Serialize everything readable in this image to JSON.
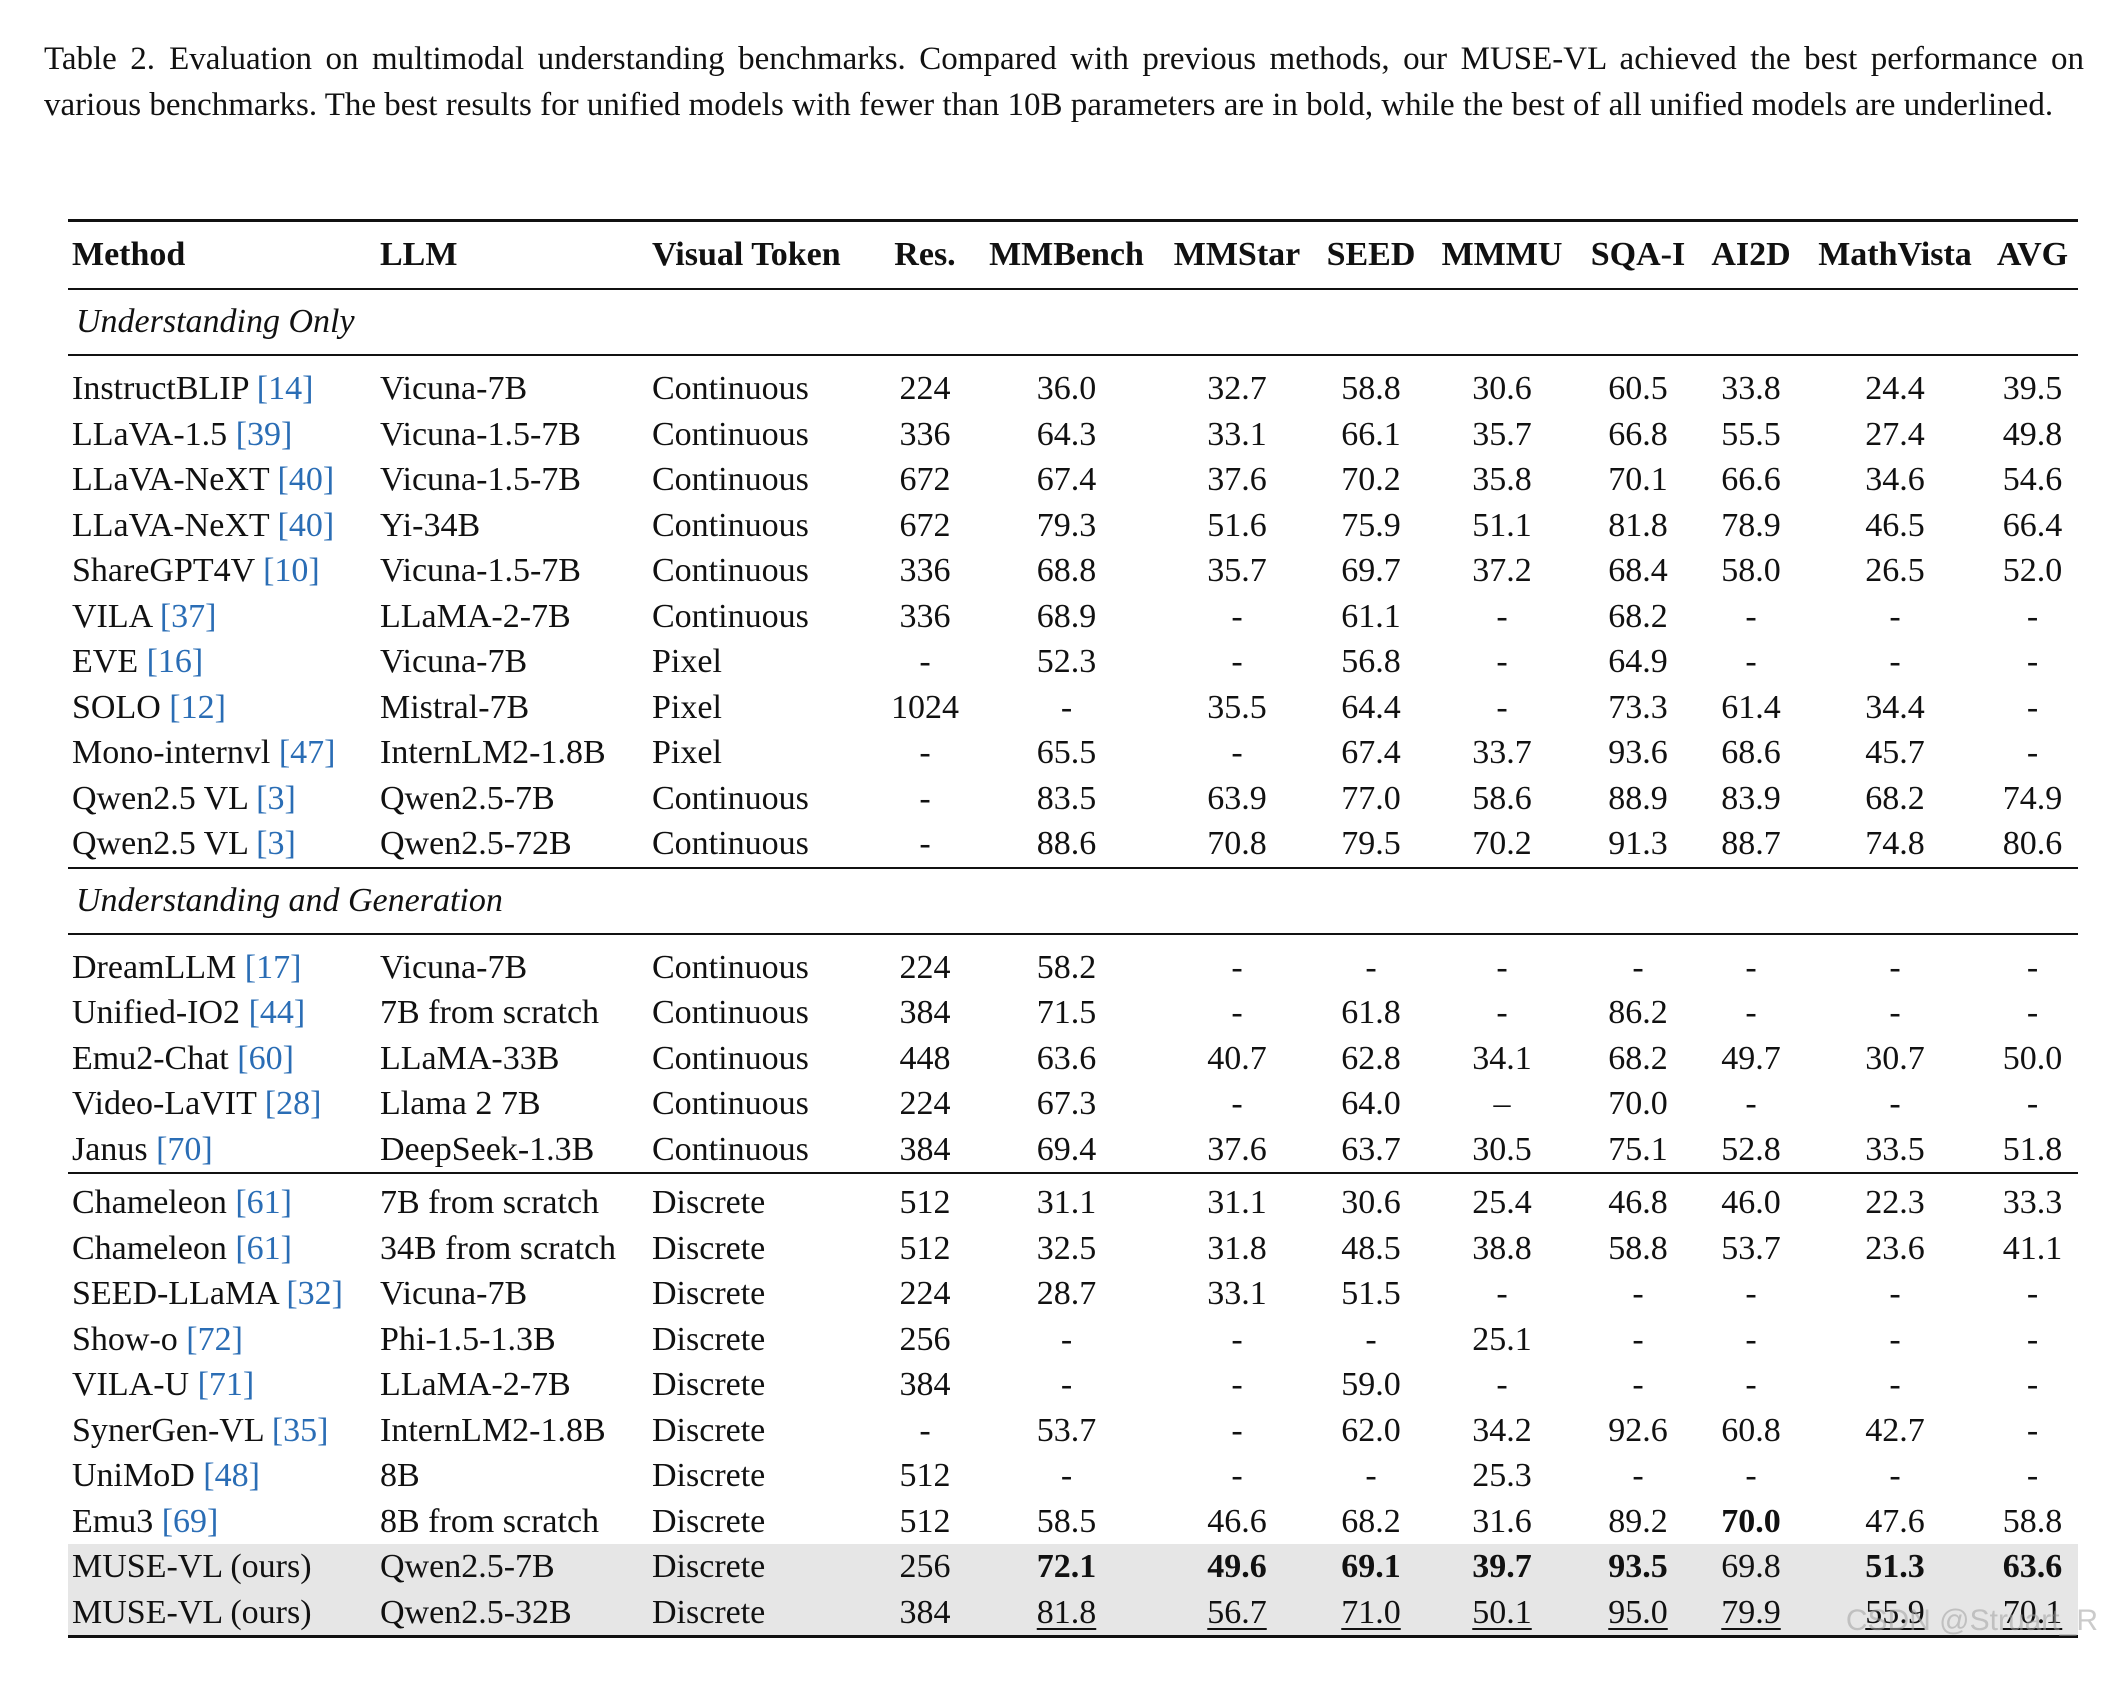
{
  "caption": {
    "label": "Table 2.",
    "text": "Evaluation on multimodal understanding benchmarks.  Compared with previous methods, our MUSE-VL achieved the best performance on various benchmarks. The best results for unified models with fewer than 10B parameters are in bold, while the best of all unified models are underlined."
  },
  "headers": [
    "Method",
    "LLM",
    "Visual Token",
    "Res.",
    "MMBench",
    "MMStar",
    "SEED",
    "MMMU",
    "SQA-I",
    "AI2D",
    "MathVista",
    "AVG"
  ],
  "sections": {
    "understanding_only": "Understanding Only",
    "understanding_generation": "Understanding and Generation"
  },
  "understanding_only_rows": [
    {
      "method": "InstructBLIP",
      "ref": "[14]",
      "llm": "Vicuna-7B",
      "token": "Continuous",
      "res": "224",
      "mmbench": "36.0",
      "mmstar": "32.7",
      "seed": "58.8",
      "mmmu": "30.6",
      "sqa": "60.5",
      "ai2d": "33.8",
      "math": "24.4",
      "avg": "39.5"
    },
    {
      "method": "LLaVA-1.5",
      "ref": "[39]",
      "llm": "Vicuna-1.5-7B",
      "token": "Continuous",
      "res": "336",
      "mmbench": "64.3",
      "mmstar": "33.1",
      "seed": "66.1",
      "mmmu": "35.7",
      "sqa": "66.8",
      "ai2d": "55.5",
      "math": "27.4",
      "avg": "49.8"
    },
    {
      "method": "LLaVA-NeXT",
      "ref": "[40]",
      "llm": "Vicuna-1.5-7B",
      "token": "Continuous",
      "res": "672",
      "mmbench": "67.4",
      "mmstar": "37.6",
      "seed": "70.2",
      "mmmu": "35.8",
      "sqa": "70.1",
      "ai2d": "66.6",
      "math": "34.6",
      "avg": "54.6"
    },
    {
      "method": "LLaVA-NeXT",
      "ref": "[40]",
      "llm": "Yi-34B",
      "token": "Continuous",
      "res": "672",
      "mmbench": "79.3",
      "mmstar": "51.6",
      "seed": "75.9",
      "mmmu": "51.1",
      "sqa": "81.8",
      "ai2d": "78.9",
      "math": "46.5",
      "avg": "66.4"
    },
    {
      "method": "ShareGPT4V",
      "ref": "[10]",
      "llm": "Vicuna-1.5-7B",
      "token": "Continuous",
      "res": "336",
      "mmbench": "68.8",
      "mmstar": "35.7",
      "seed": "69.7",
      "mmmu": "37.2",
      "sqa": "68.4",
      "ai2d": "58.0",
      "math": "26.5",
      "avg": "52.0"
    },
    {
      "method": "VILA",
      "ref": "[37]",
      "llm": "LLaMA-2-7B",
      "token": "Continuous",
      "res": "336",
      "mmbench": "68.9",
      "mmstar": "-",
      "seed": "61.1",
      "mmmu": "-",
      "sqa": "68.2",
      "ai2d": "-",
      "math": "-",
      "avg": "-"
    },
    {
      "method": "EVE",
      "ref": "[16]",
      "llm": "Vicuna-7B",
      "token": "Pixel",
      "res": "-",
      "mmbench": "52.3",
      "mmstar": "-",
      "seed": "56.8",
      "mmmu": "-",
      "sqa": "64.9",
      "ai2d": "-",
      "math": "-",
      "avg": "-"
    },
    {
      "method": "SOLO",
      "ref": "[12]",
      "llm": "Mistral-7B",
      "token": "Pixel",
      "res": "1024",
      "mmbench": "-",
      "mmstar": "35.5",
      "seed": "64.4",
      "mmmu": "-",
      "sqa": "73.3",
      "ai2d": "61.4",
      "math": "34.4",
      "avg": "-"
    },
    {
      "method": "Mono-internvl",
      "ref": "[47]",
      "llm": "InternLM2-1.8B",
      "token": "Pixel",
      "res": "-",
      "mmbench": "65.5",
      "mmstar": "-",
      "seed": "67.4",
      "mmmu": "33.7",
      "sqa": "93.6",
      "ai2d": "68.6",
      "math": "45.7",
      "avg": "-"
    },
    {
      "method": "Qwen2.5 VL",
      "ref": "[3]",
      "llm": "Qwen2.5-7B",
      "token": "Continuous",
      "res": "-",
      "mmbench": "83.5",
      "mmstar": "63.9",
      "seed": "77.0",
      "mmmu": "58.6",
      "sqa": "88.9",
      "ai2d": "83.9",
      "math": "68.2",
      "avg": "74.9"
    },
    {
      "method": "Qwen2.5 VL",
      "ref": "[3]",
      "llm": "Qwen2.5-72B",
      "token": "Continuous",
      "res": "-",
      "mmbench": "88.6",
      "mmstar": "70.8",
      "seed": "79.5",
      "mmmu": "70.2",
      "sqa": "91.3",
      "ai2d": "88.7",
      "math": "74.8",
      "avg": "80.6"
    }
  ],
  "continuous_unified_rows": [
    {
      "method": "DreamLLM",
      "ref": "[17]",
      "llm": "Vicuna-7B",
      "token": "Continuous",
      "res": "224",
      "mmbench": "58.2",
      "mmstar": "-",
      "seed": "-",
      "mmmu": "-",
      "sqa": "-",
      "ai2d": "-",
      "math": "-",
      "avg": "-"
    },
    {
      "method": "Unified-IO2",
      "ref": "[44]",
      "llm": "7B from scratch",
      "token": "Continuous",
      "res": "384",
      "mmbench": "71.5",
      "mmstar": "-",
      "seed": "61.8",
      "mmmu": "-",
      "sqa": "86.2",
      "ai2d": "-",
      "math": "-",
      "avg": "-"
    },
    {
      "method": "Emu2-Chat",
      "ref": "[60]",
      "llm": "LLaMA-33B",
      "token": "Continuous",
      "res": "448",
      "mmbench": "63.6",
      "mmstar": "40.7",
      "seed": "62.8",
      "mmmu": "34.1",
      "sqa": "68.2",
      "ai2d": "49.7",
      "math": "30.7",
      "avg": "50.0"
    },
    {
      "method": "Video-LaVIT",
      "ref": "[28]",
      "llm": "Llama 2 7B",
      "token": "Continuous",
      "res": "224",
      "mmbench": "67.3",
      "mmstar": "-",
      "seed": "64.0",
      "mmmu": "–",
      "sqa": "70.0",
      "ai2d": "-",
      "math": "-",
      "avg": "-"
    },
    {
      "method": "Janus",
      "ref": "[70]",
      "llm": "DeepSeek-1.3B",
      "token": "Continuous",
      "res": "384",
      "mmbench": "69.4",
      "mmstar": "37.6",
      "seed": "63.7",
      "mmmu": "30.5",
      "sqa": "75.1",
      "ai2d": "52.8",
      "math": "33.5",
      "avg": "51.8"
    }
  ],
  "discrete_unified_rows": [
    {
      "method": "Chameleon",
      "ref": "[61]",
      "llm": "7B from scratch",
      "token": "Discrete",
      "res": "512",
      "mmbench": "31.1",
      "mmstar": "31.1",
      "seed": "30.6",
      "mmmu": "25.4",
      "sqa": "46.8",
      "ai2d": "46.0",
      "math": "22.3",
      "avg": "33.3"
    },
    {
      "method": "Chameleon",
      "ref": "[61]",
      "llm": "34B from scratch",
      "token": "Discrete",
      "res": "512",
      "mmbench": "32.5",
      "mmstar": "31.8",
      "seed": "48.5",
      "mmmu": "38.8",
      "sqa": "58.8",
      "ai2d": "53.7",
      "math": "23.6",
      "avg": "41.1"
    },
    {
      "method": "SEED-LLaMA",
      "ref": "[32]",
      "llm": "Vicuna-7B",
      "token": "Discrete",
      "res": "224",
      "mmbench": "28.7",
      "mmstar": "33.1",
      "seed": "51.5",
      "mmmu": "-",
      "sqa": "-",
      "ai2d": "-",
      "math": "-",
      "avg": "-"
    },
    {
      "method": "Show-o",
      "ref": "[72]",
      "llm": "Phi-1.5-1.3B",
      "token": "Discrete",
      "res": "256",
      "mmbench": "-",
      "mmstar": "-",
      "seed": "-",
      "mmmu": "25.1",
      "sqa": "-",
      "ai2d": "-",
      "math": "-",
      "avg": "-"
    },
    {
      "method": "VILA-U",
      "ref": "[71]",
      "llm": "LLaMA-2-7B",
      "token": "Discrete",
      "res": "384",
      "mmbench": "-",
      "mmstar": "-",
      "seed": "59.0",
      "mmmu": "-",
      "sqa": "-",
      "ai2d": "-",
      "math": "-",
      "avg": "-"
    },
    {
      "method": "SynerGen-VL",
      "ref": "[35]",
      "llm": "InternLM2-1.8B",
      "token": "Discrete",
      "res": "-",
      "mmbench": "53.7",
      "mmstar": "-",
      "seed": "62.0",
      "mmmu": "34.2",
      "sqa": "92.6",
      "ai2d": "60.8",
      "math": "42.7",
      "avg": "-"
    },
    {
      "method": "UniMoD",
      "ref": "[48]",
      "llm": "8B",
      "token": "Discrete",
      "res": "512",
      "mmbench": "-",
      "mmstar": "-",
      "seed": "-",
      "mmmu": "25.3",
      "sqa": "-",
      "ai2d": "-",
      "math": "-",
      "avg": "-"
    },
    {
      "method": "Emu3",
      "ref": "[69]",
      "llm": "8B from scratch",
      "token": "Discrete",
      "res": "512",
      "mmbench": "58.5",
      "mmstar": "46.6",
      "seed": "68.2",
      "mmmu": "31.6",
      "sqa": "89.2",
      "ai2d": "70.0",
      "math": "47.6",
      "avg": "58.8"
    }
  ],
  "ours_rows": [
    {
      "method": "MUSE-VL (ours)",
      "llm": "Qwen2.5-7B",
      "token": "Discrete",
      "res": "256",
      "mmbench": "72.1",
      "mmstar": "49.6",
      "seed": "69.1",
      "mmmu": "39.7",
      "sqa": "93.5",
      "ai2d": "69.8",
      "math": "51.3",
      "avg": "63.6"
    },
    {
      "method": "MUSE-VL (ours)",
      "llm": "Qwen2.5-32B",
      "token": "Discrete",
      "res": "384",
      "mmbench": "81.8",
      "mmstar": "56.7",
      "seed": "71.0",
      "mmmu": "50.1",
      "sqa": "95.0",
      "ai2d": "79.9",
      "math": "55.9",
      "avg": "70.1"
    }
  ],
  "watermark": "CSDN @Struart_R"
}
